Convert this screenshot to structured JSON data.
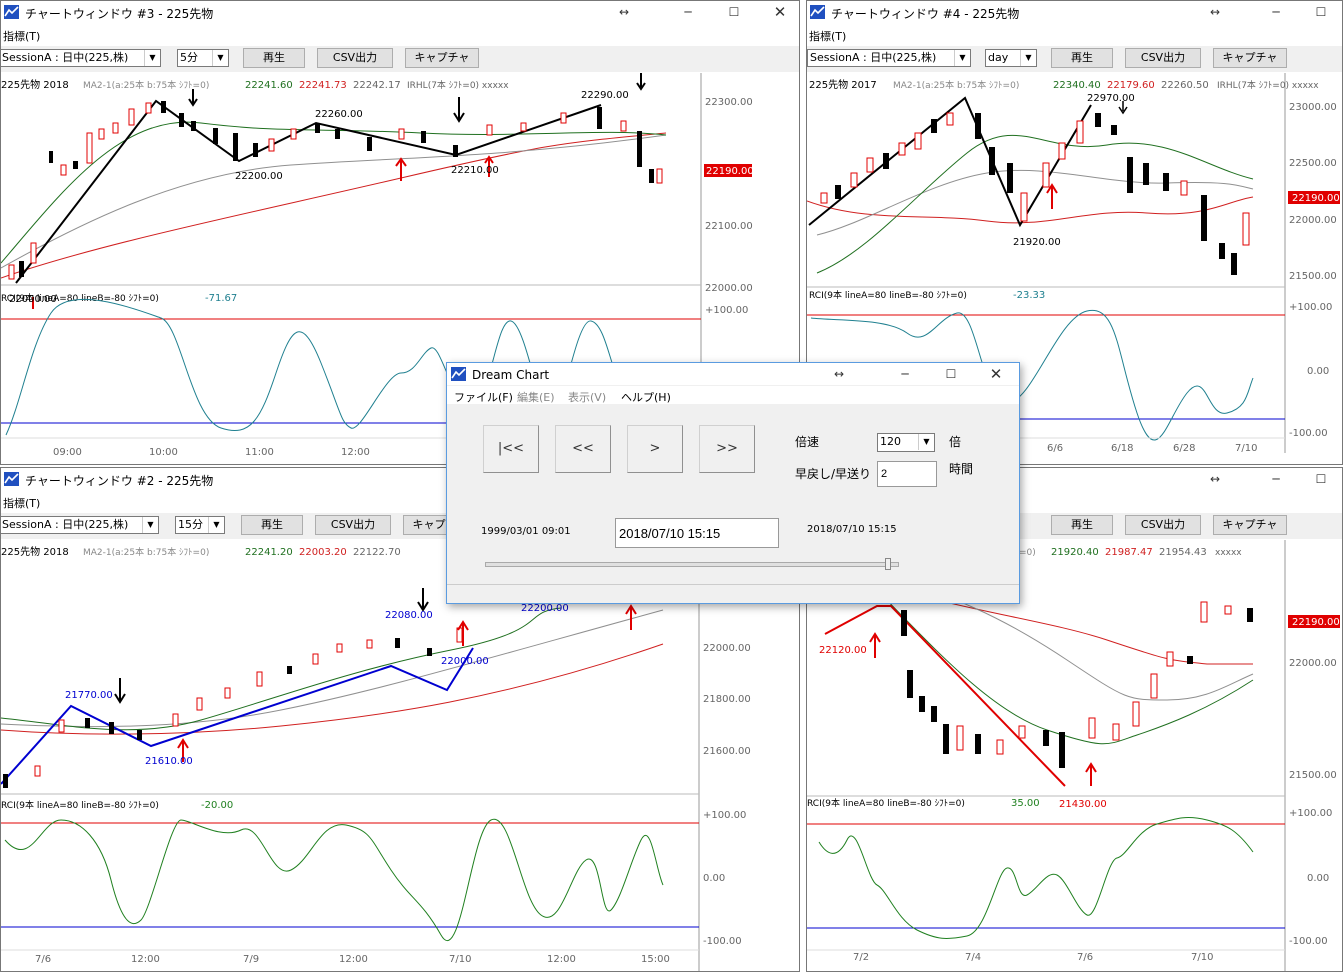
{
  "windows": {
    "w3": {
      "title": "チャートウィンドウ #3 - 225先物",
      "menu": "指標(T)",
      "session": "SessionA : 日中(225,株)",
      "interval": "5分",
      "play": "再生",
      "csv": "CSV出力",
      "capture": "キャプチャ",
      "info": {
        "name": "225先物 2018",
        "ma": "MA2-1(a:25本 b:75本 ｼﾌﾄ=0)",
        "v1": "22241.60",
        "v2": "22241.73",
        "v3": "22242.17",
        "irhl": "IRHL(7本 ｼﾌﾄ=0) xxxxx"
      },
      "price_ticks": [
        "22300.00",
        "22100.00",
        "22000.00"
      ],
      "price_box": "22190.00",
      "labels": [
        "22260.00",
        "22290.00",
        "22200.00",
        "22210.00",
        "22000.00"
      ],
      "rci": {
        "label": "RCI(9本 lineA=80 lineB=-80 ｼﾌﾄ=0)",
        "value": "-71.67",
        "ticks": [
          "+100.00"
        ]
      },
      "time_ticks": [
        "09:00",
        "10:00",
        "11:00",
        "12:00"
      ]
    },
    "w4": {
      "title": "チャートウィンドウ #4 - 225先物",
      "menu": "指標(T)",
      "session": "SessionA : 日中(225,株)",
      "interval": "day",
      "play": "再生",
      "csv": "CSV出力",
      "capture": "キャプチャ",
      "info": {
        "name": "225先物 2017",
        "ma": "MA2-1(a:25本 b:75本 ｼﾌﾄ=0)",
        "v1": "22340.40",
        "v2": "22179.60",
        "v3": "22260.50",
        "irhl": "IRHL(7本 ｼﾌﾄ=0) xxxxx"
      },
      "price_ticks": [
        "23000.00",
        "22500.00",
        "22000.00",
        "21500.00"
      ],
      "price_box": "22190.00",
      "labels": [
        "22970.00",
        "21920.00"
      ],
      "rci": {
        "label": "RCI(9本 lineA=80 lineB=-80 ｼﾌﾄ=0)",
        "value": "-23.33",
        "ticks": [
          "+100.00",
          "0.00",
          "-100.00"
        ]
      },
      "time_ticks": [
        "6/6",
        "6/18",
        "6/28",
        "7/10"
      ]
    },
    "w2": {
      "title": "チャートウィンドウ #2 - 225先物",
      "menu": "指標(T)",
      "session": "SessionA : 日中(225,株)",
      "interval": "15分",
      "play": "再生",
      "csv": "CSV出力",
      "capture": "キャプチャ",
      "info": {
        "name": "225先物 2018",
        "ma": "MA2-1(a:25本 b:75本 ｼﾌﾄ=0)",
        "v1": "22241.20",
        "v2": "22003.20",
        "v3": "22122.70",
        "irhl": ""
      },
      "price_ticks": [
        "22000.00",
        "21800.00",
        "21600.00"
      ],
      "labels": [
        "21770.00",
        "21610.00",
        "22080.00",
        "22000.00",
        "22200.00"
      ],
      "rci": {
        "label": "RCI(9本 lineA=80 lineB=-80 ｼﾌﾄ=0)",
        "value": "-20.00",
        "ticks": [
          "+100.00",
          "0.00",
          "-100.00"
        ]
      },
      "time_ticks": [
        "7/6",
        "12:00",
        "7/9",
        "12:00",
        "7/10",
        "12:00",
        "15:00"
      ]
    },
    "w1": {
      "play": "再生",
      "csv": "CSV出力",
      "capture": "キャプチャ",
      "info": {
        "ma": "=0)",
        "v1": "21920.40",
        "v2": "21987.47",
        "v3": "21954.43",
        "irhl": "xxxxx"
      },
      "price_ticks": [
        "22000.00",
        "21500.00"
      ],
      "price_box": "22190.00",
      "labels": [
        "22120.00",
        "21430.00"
      ],
      "rci": {
        "label": "RCI(9本 lineA=80 lineB=-80 ｼﾌﾄ=0)",
        "value": "35.00",
        "ticks": [
          "+100.00",
          "0.00",
          "-100.00"
        ]
      },
      "time_ticks": [
        "7/2",
        "7/4",
        "7/6",
        "7/10"
      ]
    }
  },
  "dialog": {
    "title": "Dream Chart",
    "menu": [
      "ファイル(F)",
      "編集(E)",
      "表示(V)",
      "ヘルプ(H)"
    ],
    "buttons": [
      "|<<",
      "<<",
      ">",
      ">>"
    ],
    "speed_label": "倍速",
    "speed_value": "120",
    "speed_unit": "倍",
    "rewind_label": "早戻し/早送り",
    "rewind_value": "2",
    "rewind_unit": "時間",
    "start_date": "1999/03/01 09:01",
    "current_date": "2018/07/10 15:15",
    "end_date": "2018/07/10 15:15",
    "slider_position": 0.98
  },
  "colors": {
    "up": "#e00000",
    "down": "#000000",
    "ma_short": "#207020",
    "ma_mid": "#909090",
    "ma_long": "#d02020",
    "zigzag_black": "#000000",
    "zigzag_blue": "#0000d0",
    "zigzag_red": "#e00000",
    "rci": "#208090",
    "rci2": "#208020",
    "lineA": "#e00000",
    "lineB": "#0000d0",
    "price_box_bg": "#e00000"
  }
}
